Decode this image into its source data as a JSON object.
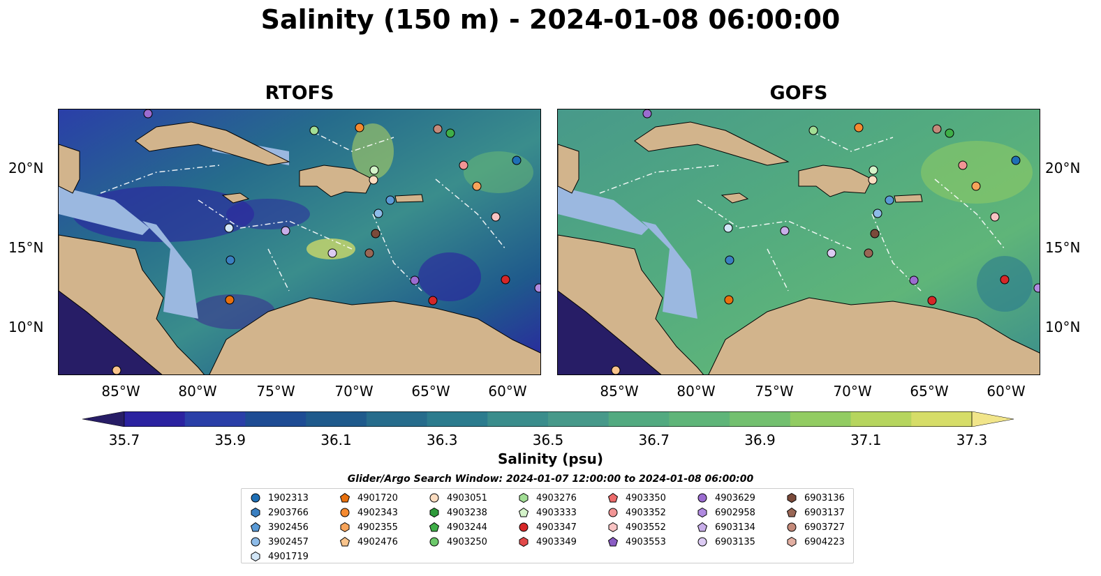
{
  "title": "Salinity (150 m) - 2024-01-08 06:00:00",
  "panels": [
    {
      "title": "RTOFS"
    },
    {
      "title": "GOFS"
    }
  ],
  "lat_labels": [
    "20°N",
    "15°N",
    "10°N"
  ],
  "lon_labels": [
    "85°W",
    "80°W",
    "75°W",
    "70°W",
    "65°W",
    "60°W"
  ],
  "colorbar": {
    "label": "Salinity (psu)",
    "ticks": [
      "35.7",
      "35.9",
      "36.1",
      "36.3",
      "36.5",
      "36.7",
      "36.9",
      "37.1",
      "37.3"
    ],
    "colors": [
      "#271d66",
      "#2b22a0",
      "#2a3fa8",
      "#1e4c94",
      "#1f5a8c",
      "#266c8c",
      "#2c7c8e",
      "#3a8d8c",
      "#47998a",
      "#52aa80",
      "#5fb579",
      "#73c06f",
      "#92cc62",
      "#b6d55e",
      "#d6dd68",
      "#f1e58a"
    ]
  },
  "search_window": "Glider/Argo Search Window: 2024-01-07 12:00:00 to 2024-01-08 06:00:00",
  "legend": [
    {
      "id": "1902313",
      "marker": "circle",
      "color": "#1f6fb5"
    },
    {
      "id": "2903766",
      "marker": "hexagon",
      "color": "#3a7fc1"
    },
    {
      "id": "3902456",
      "marker": "pentagon",
      "color": "#5a9ad6"
    },
    {
      "id": "3902457",
      "marker": "circle",
      "color": "#8dbbe8"
    },
    {
      "id": "4901719",
      "marker": "hexagon",
      "color": "#d2e6f7"
    },
    {
      "id": "4901720",
      "marker": "pentagon",
      "color": "#e8700e"
    },
    {
      "id": "4902343",
      "marker": "circle",
      "color": "#f58a30"
    },
    {
      "id": "4902355",
      "marker": "hexagon",
      "color": "#f7a45a"
    },
    {
      "id": "4902476",
      "marker": "pentagon",
      "color": "#f9c48c"
    },
    {
      "id": "4903051",
      "marker": "circle",
      "color": "#fbdcc0"
    },
    {
      "id": "4903238",
      "marker": "hexagon",
      "color": "#2e9a3a"
    },
    {
      "id": "4903244",
      "marker": "pentagon",
      "color": "#3faf48"
    },
    {
      "id": "4903250",
      "marker": "circle",
      "color": "#6cc86a"
    },
    {
      "id": "4903276",
      "marker": "hexagon",
      "color": "#a2de95"
    },
    {
      "id": "4903333",
      "marker": "pentagon",
      "color": "#d4f3c9"
    },
    {
      "id": "4903347",
      "marker": "circle",
      "color": "#d62728"
    },
    {
      "id": "4903349",
      "marker": "hexagon",
      "color": "#e24a4a"
    },
    {
      "id": "4903350",
      "marker": "pentagon",
      "color": "#ec6b6b"
    },
    {
      "id": "4903352",
      "marker": "circle",
      "color": "#f29595"
    },
    {
      "id": "4903552",
      "marker": "hexagon",
      "color": "#f8c3c3"
    },
    {
      "id": "4903553",
      "marker": "pentagon",
      "color": "#8a5cc4"
    },
    {
      "id": "4903629",
      "marker": "circle",
      "color": "#9b6cd0"
    },
    {
      "id": "6902958",
      "marker": "hexagon",
      "color": "#b08ae0"
    },
    {
      "id": "6903134",
      "marker": "pentagon",
      "color": "#c8aee9"
    },
    {
      "id": "6903135",
      "marker": "circle",
      "color": "#dccbf3"
    },
    {
      "id": "6903136",
      "marker": "hexagon",
      "color": "#7a4a3a"
    },
    {
      "id": "6903137",
      "marker": "pentagon",
      "color": "#996655"
    },
    {
      "id": "6903727",
      "marker": "circle",
      "color": "#c48a7a"
    },
    {
      "id": "6904223",
      "marker": "hexagon",
      "color": "#e2afa2"
    }
  ],
  "colors": {
    "land": "#d2b48c",
    "shelf": "#9bb8e0",
    "deep_rtofs": "#2f5e88",
    "deep_gofs": "#5cae75"
  }
}
